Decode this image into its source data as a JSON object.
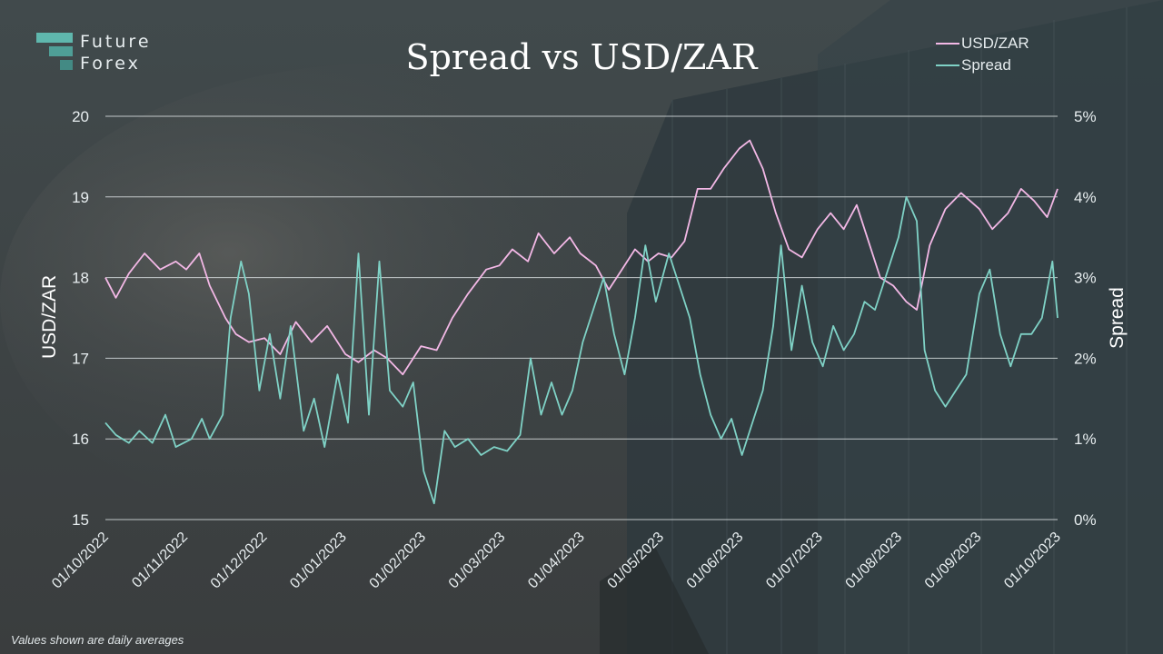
{
  "brand": {
    "line1": "Future",
    "line2": "Forex"
  },
  "footnote": "Values shown are daily averages",
  "chart_data": {
    "type": "line",
    "title": "Spread vs USD/ZAR",
    "ylabel_left": "USD/ZAR",
    "ylabel_right": "Spread",
    "ylim_left": [
      15,
      20
    ],
    "ylim_right": [
      0,
      5
    ],
    "yticks_left": [
      "15",
      "16",
      "17",
      "18",
      "19",
      "20"
    ],
    "yticks_right": [
      "0%",
      "1%",
      "2%",
      "3%",
      "4%",
      "5%"
    ],
    "grid": true,
    "legend_position": "top-right",
    "x_range": [
      "2022-10-01",
      "2023-10-01"
    ],
    "x_tick_labels": [
      "01/10/2022",
      "01/11/2022",
      "01/12/2022",
      "01/01/2023",
      "01/02/2023",
      "01/03/2023",
      "01/04/2023",
      "01/05/2023",
      "01/06/2023",
      "01/07/2023",
      "01/08/2023",
      "01/09/2023",
      "01/10/2023"
    ],
    "series": [
      {
        "name": "USD/ZAR",
        "color": "#f3b8e6",
        "axis": "left",
        "points": [
          [
            "2022-10-01",
            18.0
          ],
          [
            "2022-10-05",
            17.75
          ],
          [
            "2022-10-10",
            18.05
          ],
          [
            "2022-10-16",
            18.3
          ],
          [
            "2022-10-22",
            18.1
          ],
          [
            "2022-10-28",
            18.2
          ],
          [
            "2022-11-01",
            18.1
          ],
          [
            "2022-11-06",
            18.3
          ],
          [
            "2022-11-10",
            17.9
          ],
          [
            "2022-11-16",
            17.5
          ],
          [
            "2022-11-20",
            17.3
          ],
          [
            "2022-11-25",
            17.2
          ],
          [
            "2022-12-01",
            17.25
          ],
          [
            "2022-12-07",
            17.05
          ],
          [
            "2022-12-13",
            17.45
          ],
          [
            "2022-12-19",
            17.2
          ],
          [
            "2022-12-25",
            17.4
          ],
          [
            "2023-01-01",
            17.05
          ],
          [
            "2023-01-06",
            16.95
          ],
          [
            "2023-01-12",
            17.1
          ],
          [
            "2023-01-17",
            17.0
          ],
          [
            "2023-01-23",
            16.8
          ],
          [
            "2023-01-30",
            17.15
          ],
          [
            "2023-02-05",
            17.1
          ],
          [
            "2023-02-11",
            17.5
          ],
          [
            "2023-02-17",
            17.8
          ],
          [
            "2023-02-24",
            18.1
          ],
          [
            "2023-03-01",
            18.15
          ],
          [
            "2023-03-06",
            18.35
          ],
          [
            "2023-03-12",
            18.2
          ],
          [
            "2023-03-16",
            18.55
          ],
          [
            "2023-03-22",
            18.3
          ],
          [
            "2023-03-28",
            18.5
          ],
          [
            "2023-04-01",
            18.3
          ],
          [
            "2023-04-07",
            18.15
          ],
          [
            "2023-04-12",
            17.85
          ],
          [
            "2023-04-17",
            18.1
          ],
          [
            "2023-04-22",
            18.35
          ],
          [
            "2023-04-27",
            18.2
          ],
          [
            "2023-05-01",
            18.3
          ],
          [
            "2023-05-06",
            18.25
          ],
          [
            "2023-05-11",
            18.45
          ],
          [
            "2023-05-16",
            19.1
          ],
          [
            "2023-05-21",
            19.1
          ],
          [
            "2023-05-26",
            19.35
          ],
          [
            "2023-06-01",
            19.6
          ],
          [
            "2023-06-05",
            19.7
          ],
          [
            "2023-06-10",
            19.35
          ],
          [
            "2023-06-15",
            18.8
          ],
          [
            "2023-06-20",
            18.35
          ],
          [
            "2023-06-25",
            18.25
          ],
          [
            "2023-07-01",
            18.6
          ],
          [
            "2023-07-06",
            18.8
          ],
          [
            "2023-07-11",
            18.6
          ],
          [
            "2023-07-16",
            18.9
          ],
          [
            "2023-07-20",
            18.5
          ],
          [
            "2023-07-25",
            18.0
          ],
          [
            "2023-07-30",
            17.9
          ],
          [
            "2023-08-04",
            17.7
          ],
          [
            "2023-08-08",
            17.6
          ],
          [
            "2023-08-13",
            18.4
          ],
          [
            "2023-08-19",
            18.85
          ],
          [
            "2023-08-25",
            19.05
          ],
          [
            "2023-09-01",
            18.85
          ],
          [
            "2023-09-06",
            18.6
          ],
          [
            "2023-09-12",
            18.8
          ],
          [
            "2023-09-17",
            19.1
          ],
          [
            "2023-09-22",
            18.95
          ],
          [
            "2023-09-27",
            18.75
          ],
          [
            "2023-10-01",
            19.1
          ]
        ]
      },
      {
        "name": "Spread",
        "color": "#7fd2c6",
        "axis": "right",
        "points": [
          [
            "2022-10-01",
            1.2
          ],
          [
            "2022-10-05",
            1.05
          ],
          [
            "2022-10-10",
            0.95
          ],
          [
            "2022-10-14",
            1.1
          ],
          [
            "2022-10-19",
            0.95
          ],
          [
            "2022-10-24",
            1.3
          ],
          [
            "2022-10-28",
            0.9
          ],
          [
            "2022-11-03",
            1.0
          ],
          [
            "2022-11-07",
            1.25
          ],
          [
            "2022-11-10",
            1.0
          ],
          [
            "2022-11-15",
            1.3
          ],
          [
            "2022-11-18",
            2.5
          ],
          [
            "2022-11-22",
            3.2
          ],
          [
            "2022-11-25",
            2.8
          ],
          [
            "2022-11-29",
            1.6
          ],
          [
            "2022-12-03",
            2.3
          ],
          [
            "2022-12-07",
            1.5
          ],
          [
            "2022-12-11",
            2.4
          ],
          [
            "2022-12-16",
            1.1
          ],
          [
            "2022-12-20",
            1.5
          ],
          [
            "2022-12-24",
            0.9
          ],
          [
            "2022-12-29",
            1.8
          ],
          [
            "2023-01-02",
            1.2
          ],
          [
            "2023-01-06",
            3.3
          ],
          [
            "2023-01-10",
            1.3
          ],
          [
            "2023-01-14",
            3.2
          ],
          [
            "2023-01-18",
            1.6
          ],
          [
            "2023-01-23",
            1.4
          ],
          [
            "2023-01-27",
            1.7
          ],
          [
            "2023-01-31",
            0.6
          ],
          [
            "2023-02-04",
            0.2
          ],
          [
            "2023-02-08",
            1.1
          ],
          [
            "2023-02-12",
            0.9
          ],
          [
            "2023-02-17",
            1.0
          ],
          [
            "2023-02-22",
            0.8
          ],
          [
            "2023-02-27",
            0.9
          ],
          [
            "2023-03-04",
            0.85
          ],
          [
            "2023-03-09",
            1.05
          ],
          [
            "2023-03-13",
            2.0
          ],
          [
            "2023-03-17",
            1.3
          ],
          [
            "2023-03-21",
            1.7
          ],
          [
            "2023-03-25",
            1.3
          ],
          [
            "2023-03-29",
            1.6
          ],
          [
            "2023-04-02",
            2.2
          ],
          [
            "2023-04-06",
            2.6
          ],
          [
            "2023-04-10",
            3.0
          ],
          [
            "2023-04-14",
            2.3
          ],
          [
            "2023-04-18",
            1.8
          ],
          [
            "2023-04-22",
            2.5
          ],
          [
            "2023-04-26",
            3.4
          ],
          [
            "2023-04-30",
            2.7
          ],
          [
            "2023-05-05",
            3.3
          ],
          [
            "2023-05-09",
            2.9
          ],
          [
            "2023-05-13",
            2.5
          ],
          [
            "2023-05-17",
            1.8
          ],
          [
            "2023-05-21",
            1.3
          ],
          [
            "2023-05-25",
            1.0
          ],
          [
            "2023-05-29",
            1.25
          ],
          [
            "2023-06-02",
            0.8
          ],
          [
            "2023-06-06",
            1.2
          ],
          [
            "2023-06-10",
            1.6
          ],
          [
            "2023-06-14",
            2.4
          ],
          [
            "2023-06-17",
            3.4
          ],
          [
            "2023-06-21",
            2.1
          ],
          [
            "2023-06-25",
            2.9
          ],
          [
            "2023-06-29",
            2.2
          ],
          [
            "2023-07-03",
            1.9
          ],
          [
            "2023-07-07",
            2.4
          ],
          [
            "2023-07-11",
            2.1
          ],
          [
            "2023-07-15",
            2.3
          ],
          [
            "2023-07-19",
            2.7
          ],
          [
            "2023-07-23",
            2.6
          ],
          [
            "2023-07-28",
            3.1
          ],
          [
            "2023-08-01",
            3.5
          ],
          [
            "2023-08-04",
            4.0
          ],
          [
            "2023-08-08",
            3.7
          ],
          [
            "2023-08-11",
            2.1
          ],
          [
            "2023-08-15",
            1.6
          ],
          [
            "2023-08-19",
            1.4
          ],
          [
            "2023-08-23",
            1.6
          ],
          [
            "2023-08-27",
            1.8
          ],
          [
            "2023-09-01",
            2.8
          ],
          [
            "2023-09-05",
            3.1
          ],
          [
            "2023-09-09",
            2.3
          ],
          [
            "2023-09-13",
            1.9
          ],
          [
            "2023-09-17",
            2.3
          ],
          [
            "2023-09-21",
            2.3
          ],
          [
            "2023-09-25",
            2.5
          ],
          [
            "2023-09-29",
            3.2
          ],
          [
            "2023-10-01",
            2.5
          ]
        ]
      }
    ]
  }
}
